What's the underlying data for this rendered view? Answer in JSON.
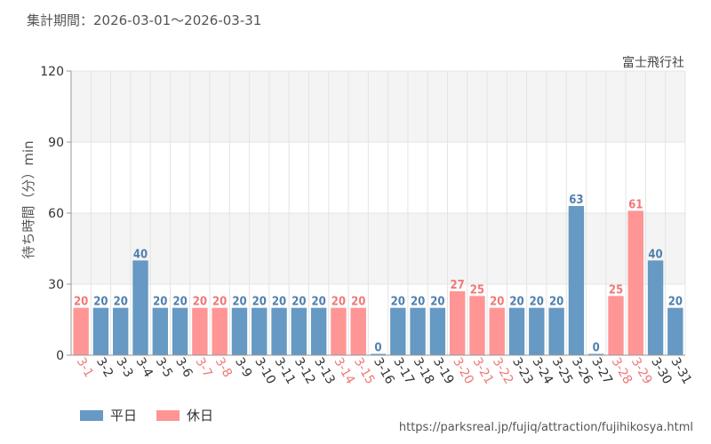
{
  "header": {
    "period": "集計期間：2026-03-01～2026-03-31",
    "attraction": "富士飛行社"
  },
  "legend": {
    "weekday_label": "平日",
    "holiday_label": "休日"
  },
  "source_url": "https://parksreal.jp/fujiq/attraction/fujihikosya.html",
  "colors": {
    "weekday": "#6699c3",
    "holiday": "#ff9595",
    "band": "#f4f4f4",
    "grid": "#e4e4e4",
    "axis": "#999999"
  },
  "chart_data": {
    "type": "bar",
    "title": "集計期間：2026-03-01～2026-03-31",
    "ylabel": "待ち時間（分）min",
    "xlabel": "",
    "ylim": [
      0,
      120
    ],
    "yticks": [
      0,
      30,
      60,
      90,
      120
    ],
    "grid": true,
    "categories": [
      "3-1",
      "3-2",
      "3-3",
      "3-4",
      "3-5",
      "3-6",
      "3-7",
      "3-8",
      "3-9",
      "3-10",
      "3-11",
      "3-12",
      "3-13",
      "3-14",
      "3-15",
      "3-16",
      "3-17",
      "3-18",
      "3-19",
      "3-20",
      "3-21",
      "3-22",
      "3-23",
      "3-24",
      "3-25",
      "3-26",
      "3-27",
      "3-28",
      "3-29",
      "3-30",
      "3-31"
    ],
    "values": [
      20,
      20,
      20,
      40,
      20,
      20,
      20,
      20,
      20,
      20,
      20,
      20,
      20,
      20,
      20,
      0,
      20,
      20,
      20,
      27,
      25,
      20,
      20,
      20,
      20,
      63,
      0,
      25,
      61,
      40,
      20
    ],
    "day_type": [
      "休日",
      "平日",
      "平日",
      "平日",
      "平日",
      "平日",
      "休日",
      "休日",
      "平日",
      "平日",
      "平日",
      "平日",
      "平日",
      "休日",
      "休日",
      "平日",
      "平日",
      "平日",
      "平日",
      "休日",
      "休日",
      "休日",
      "平日",
      "平日",
      "平日",
      "平日",
      "平日",
      "休日",
      "休日",
      "平日",
      "平日"
    ],
    "series": [
      {
        "name": "平日",
        "color": "#6699c3"
      },
      {
        "name": "休日",
        "color": "#ff9595"
      }
    ],
    "legend_position": "bottom-left"
  }
}
